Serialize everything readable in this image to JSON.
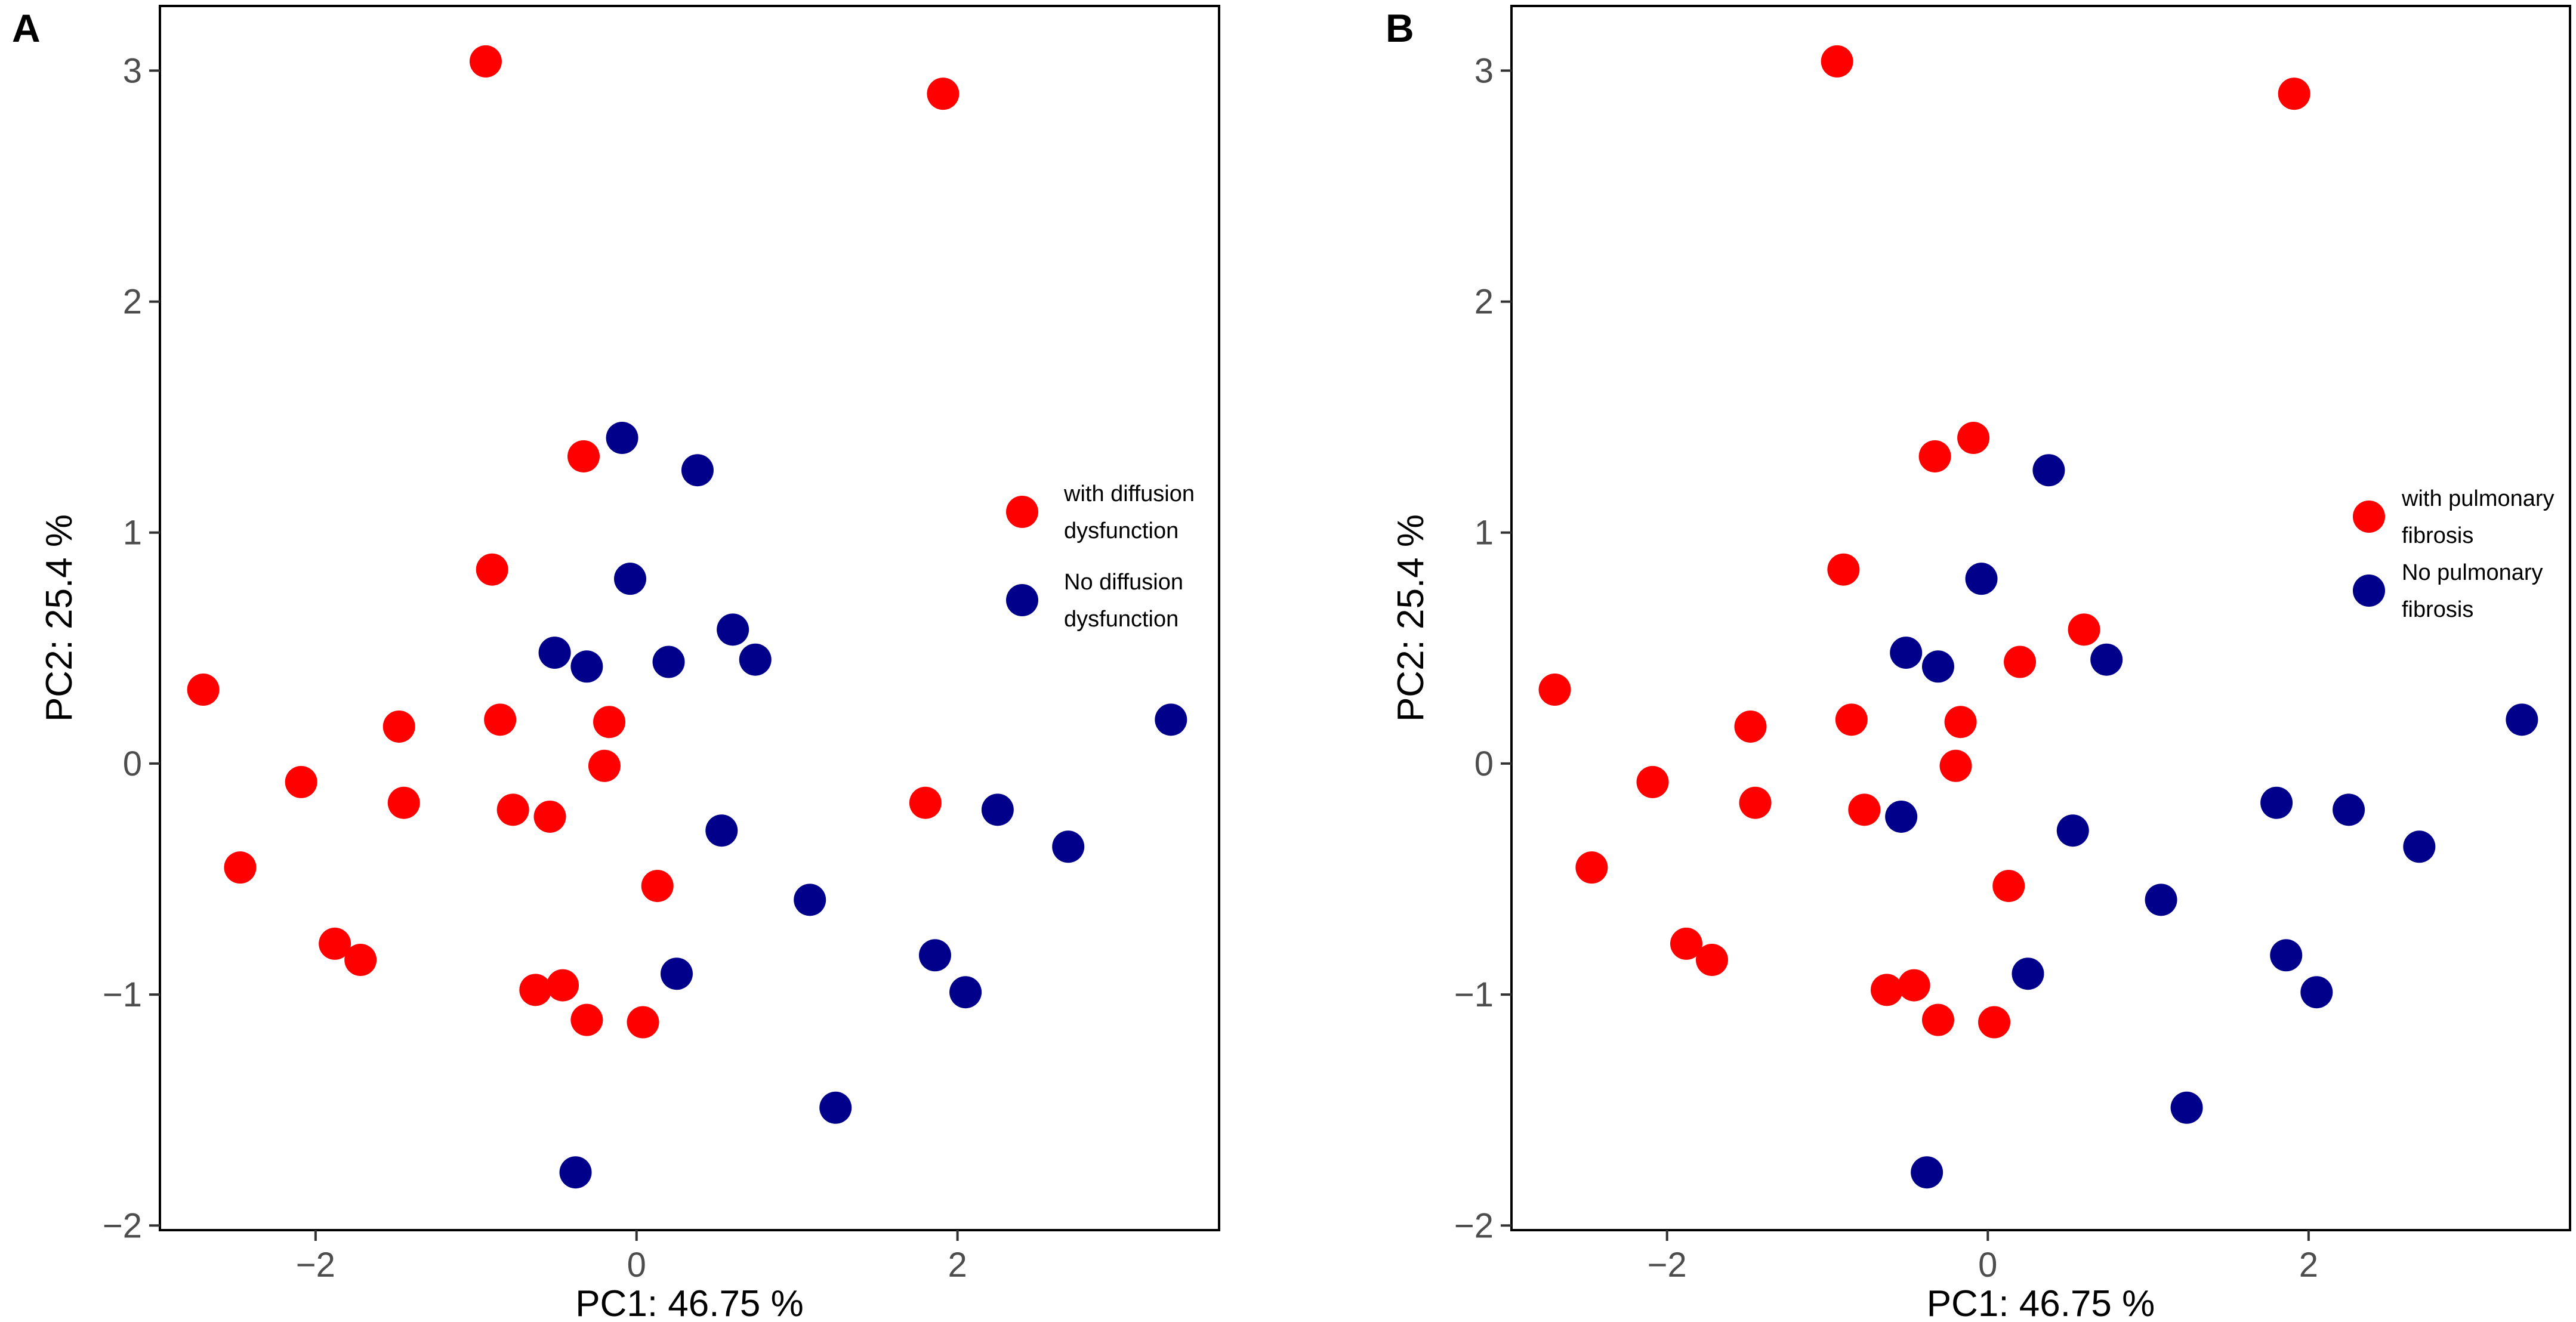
{
  "colors": {
    "with": "#ff0000",
    "no": "#00008b",
    "axis_text": "#4d4d4d",
    "frame": "#000000"
  },
  "chart_data": [
    {
      "type": "scatter",
      "panel_label": "A",
      "xlabel": "PC1: 46.75 %",
      "ylabel": "PC2: 25.4 %",
      "xlim": [
        -2.97,
        3.63
      ],
      "ylim": [
        -2.02,
        3.28
      ],
      "x_ticks": [
        -2,
        0,
        2
      ],
      "x_tick_labels": [
        "−2",
        "0",
        "2"
      ],
      "y_ticks": [
        -2,
        -1,
        0,
        1,
        2,
        3
      ],
      "y_tick_labels": [
        "−2",
        "−1",
        "0",
        "1",
        "2",
        "3"
      ],
      "legend_position": "right",
      "legend": [
        {
          "color_key": "with",
          "lines": [
            "with diffusion",
            "dysfunction"
          ]
        },
        {
          "color_key": "no",
          "lines": [
            "No diffusion",
            "dysfunction"
          ]
        }
      ],
      "series": [
        {
          "name": "with diffusion dysfunction",
          "color_key": "with",
          "points": [
            [
              -0.94,
              3.04
            ],
            [
              1.91,
              2.9
            ],
            [
              -0.33,
              1.33
            ],
            [
              -0.9,
              0.84
            ],
            [
              -2.7,
              0.32
            ],
            [
              -1.48,
              0.16
            ],
            [
              -0.85,
              0.19
            ],
            [
              -0.17,
              0.18
            ],
            [
              -2.09,
              -0.08
            ],
            [
              -0.2,
              -0.01
            ],
            [
              -1.45,
              -0.17
            ],
            [
              -0.77,
              -0.2
            ],
            [
              -0.54,
              -0.23
            ],
            [
              1.8,
              -0.17
            ],
            [
              -2.47,
              -0.45
            ],
            [
              0.13,
              -0.53
            ],
            [
              -1.88,
              -0.78
            ],
            [
              -1.72,
              -0.85
            ],
            [
              -0.63,
              -0.98
            ],
            [
              -0.46,
              -0.96
            ],
            [
              -0.31,
              -1.11
            ],
            [
              0.04,
              -1.12
            ]
          ]
        },
        {
          "name": "No diffusion dysfunction",
          "color_key": "no",
          "points": [
            [
              -0.09,
              1.41
            ],
            [
              0.38,
              1.27
            ],
            [
              -0.04,
              0.8
            ],
            [
              0.6,
              0.58
            ],
            [
              -0.51,
              0.48
            ],
            [
              -0.31,
              0.42
            ],
            [
              0.2,
              0.44
            ],
            [
              0.74,
              0.45
            ],
            [
              3.33,
              0.19
            ],
            [
              2.25,
              -0.2
            ],
            [
              0.53,
              -0.29
            ],
            [
              2.69,
              -0.36
            ],
            [
              1.08,
              -0.59
            ],
            [
              1.86,
              -0.83
            ],
            [
              0.25,
              -0.91
            ],
            [
              2.05,
              -0.99
            ],
            [
              1.24,
              -1.49
            ],
            [
              -0.38,
              -1.77
            ]
          ]
        }
      ]
    },
    {
      "type": "scatter",
      "panel_label": "B",
      "xlabel": "PC1: 46.75 %",
      "ylabel": "PC2: 25.4 %",
      "xlim": [
        -2.97,
        3.63
      ],
      "ylim": [
        -2.02,
        3.28
      ],
      "x_ticks": [
        -2,
        0,
        2
      ],
      "x_tick_labels": [
        "−2",
        "0",
        "2"
      ],
      "y_ticks": [
        -2,
        -1,
        0,
        1,
        2,
        3
      ],
      "y_tick_labels": [
        "−2",
        "−1",
        "0",
        "1",
        "2",
        "3"
      ],
      "legend_position": "right",
      "legend": [
        {
          "color_key": "with",
          "lines": [
            "with pulmonary",
            "fibrosis"
          ]
        },
        {
          "color_key": "no",
          "lines": [
            "No pulmonary",
            "fibrosis"
          ]
        }
      ],
      "series": [
        {
          "name": "with pulmonary fibrosis",
          "color_key": "with",
          "points": [
            [
              -0.94,
              3.04
            ],
            [
              1.91,
              2.9
            ],
            [
              -0.09,
              1.41
            ],
            [
              -0.33,
              1.33
            ],
            [
              -0.9,
              0.84
            ],
            [
              0.6,
              0.58
            ],
            [
              0.2,
              0.44
            ],
            [
              -2.7,
              0.32
            ],
            [
              -1.48,
              0.16
            ],
            [
              -0.85,
              0.19
            ],
            [
              -0.17,
              0.18
            ],
            [
              -2.09,
              -0.08
            ],
            [
              -0.2,
              -0.01
            ],
            [
              -1.45,
              -0.17
            ],
            [
              -0.77,
              -0.2
            ],
            [
              -2.47,
              -0.45
            ],
            [
              0.13,
              -0.53
            ],
            [
              -1.88,
              -0.78
            ],
            [
              -1.72,
              -0.85
            ],
            [
              -0.63,
              -0.98
            ],
            [
              -0.46,
              -0.96
            ],
            [
              -0.31,
              -1.11
            ],
            [
              0.04,
              -1.12
            ]
          ]
        },
        {
          "name": "No pulmonary fibrosis",
          "color_key": "no",
          "points": [
            [
              0.38,
              1.27
            ],
            [
              -0.04,
              0.8
            ],
            [
              -0.51,
              0.48
            ],
            [
              -0.31,
              0.42
            ],
            [
              0.74,
              0.45
            ],
            [
              3.33,
              0.19
            ],
            [
              1.8,
              -0.17
            ],
            [
              2.25,
              -0.2
            ],
            [
              -0.54,
              -0.23
            ],
            [
              0.53,
              -0.29
            ],
            [
              2.69,
              -0.36
            ],
            [
              1.08,
              -0.59
            ],
            [
              1.86,
              -0.83
            ],
            [
              0.25,
              -0.91
            ],
            [
              2.05,
              -0.99
            ],
            [
              1.24,
              -1.49
            ],
            [
              -0.38,
              -1.77
            ]
          ]
        }
      ]
    }
  ]
}
